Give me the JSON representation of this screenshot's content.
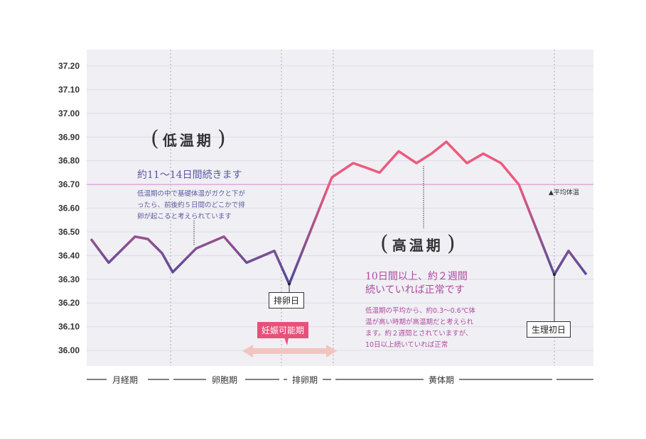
{
  "chart_data": {
    "type": "line",
    "title": "",
    "xlabel": "",
    "ylabel": "",
    "ylim": [
      36.0,
      37.2
    ],
    "yticks": [
      "37.20",
      "37.10",
      "37.00",
      "36.90",
      "36.80",
      "36.70",
      "36.60",
      "36.50",
      "36.40",
      "36.30",
      "36.20",
      "36.10",
      "36.00"
    ],
    "grid": true,
    "series": [
      {
        "values": [
          36.47,
          36.37,
          36.48,
          36.47,
          36.41,
          36.33,
          36.43,
          36.48,
          36.37,
          36.42,
          36.28,
          36.73,
          36.79,
          36.77,
          36.75,
          36.84,
          36.79,
          36.83,
          36.88,
          36.79,
          36.83,
          36.79,
          36.7,
          36.32,
          36.42,
          36.32
        ],
        "color_low": "#4a4a9a",
        "color_high": "#ec5a7e"
      }
    ],
    "reference_line": {
      "value": 36.7,
      "label": "▲平均体温",
      "color": "#e0a8d8"
    },
    "annotations": {
      "low_title": "低温期",
      "low_sub": "約11〜14日間続きます",
      "low_text": "低温期の中で基礎体温がガクと下が\nったら、前後約５日間のどこかで排\n卵が起こると考えられています",
      "high_title": "高温期",
      "high_sub": "10日間以上、約２週間\n続いていれば正常です",
      "high_text": "低温期の平均から、約0.3〜0.6℃体\n温が高い時期が高温期だと考えられ\nます。約２週間とされていますが、\n10日以上続いていれば正常",
      "ovulation_day": "排卵日",
      "period_start": "生理初日",
      "fertile": "妊娠可能期"
    },
    "phases": [
      "月経期",
      "卵胞期",
      "排卵期",
      "黄体期"
    ]
  }
}
